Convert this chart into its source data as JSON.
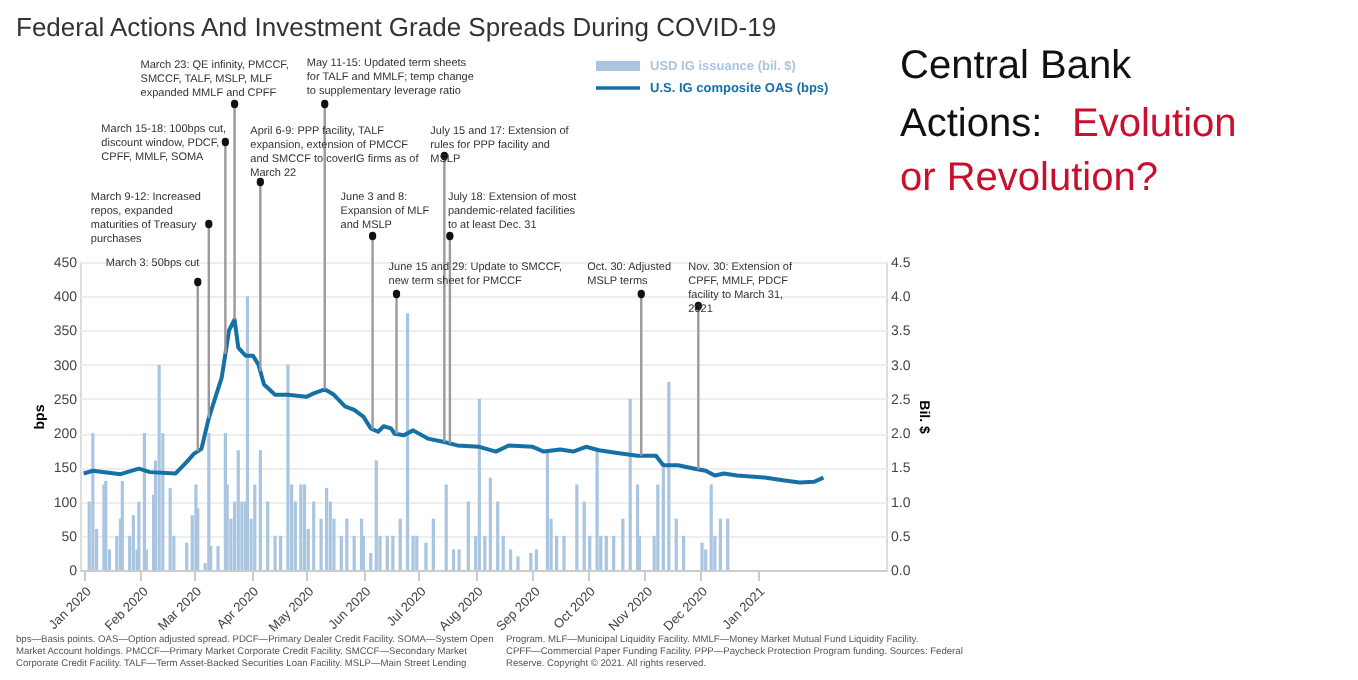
{
  "chart_data": {
    "type": "bar",
    "title": "Federal Actions And Investment Grade Spreads During COVID-19",
    "subtitle": "Central Bank Actions: Evolution or Revolution?",
    "ylabel": "bps",
    "y2label": "Bil. $",
    "xlim": [
      "2019-12-30",
      "2021-03-12"
    ],
    "xticks": [
      {
        "value": "2020-01-01",
        "label": "Jan 2020"
      },
      {
        "value": "2020-02-01",
        "label": "Feb 2020"
      },
      {
        "value": "2020-03-01",
        "label": "Mar 2020"
      },
      {
        "value": "2020-04-01",
        "label": "Apr 2020"
      },
      {
        "value": "2020-05-01",
        "label": "May 2020"
      },
      {
        "value": "2020-06-01",
        "label": "Jun 2020"
      },
      {
        "value": "2020-07-01",
        "label": "Jul 2020"
      },
      {
        "value": "2020-08-01",
        "label": "Aug 2020"
      },
      {
        "value": "2020-09-01",
        "label": "Sep 2020"
      },
      {
        "value": "2020-10-01",
        "label": "Oct 2020"
      },
      {
        "value": "2020-11-01",
        "label": "Nov 2020"
      },
      {
        "value": "2020-12-01",
        "label": "Dec 2020"
      },
      {
        "value": "2021-01-01",
        "label": "Jan 2021"
      }
    ],
    "ylim": [
      0,
      450
    ],
    "yticks": [
      0,
      50,
      100,
      150,
      200,
      250,
      300,
      350,
      400,
      450
    ],
    "y2lim": [
      0,
      4.5
    ],
    "y2ticks": [
      {
        "value": 0,
        "label": "0.0"
      },
      0.5,
      {
        "value": 1,
        "label": "1.0"
      },
      1.5,
      {
        "value": 2,
        "label": "2.0"
      },
      2.5,
      {
        "value": 3,
        "label": "3.0"
      },
      3.5,
      {
        "value": 4,
        "label": "4.0"
      },
      4.5
    ],
    "grid": "y",
    "legend": "top right",
    "series": [
      {
        "name": "USD IG issuance (bil. $)",
        "axis": "y2",
        "color": "#a9c5e0",
        "x": [
          "2020-01-04",
          "2020-01-06",
          "2020-01-08",
          "2020-01-12",
          "2020-01-13",
          "2020-01-15",
          "2020-01-19",
          "2020-01-21",
          "2020-01-22",
          "2020-01-26",
          "2020-01-28",
          "2020-01-30",
          "2020-01-31",
          "2020-02-03",
          "2020-02-04",
          "2020-02-08",
          "2020-02-09",
          "2020-02-11",
          "2020-02-13",
          "2020-02-17",
          "2020-02-19",
          "2020-02-26",
          "2020-02-29",
          "2020-03-02",
          "2020-03-03",
          "2020-03-07",
          "2020-03-09",
          "2020-03-10",
          "2020-03-14",
          "2020-03-18",
          "2020-03-19",
          "2020-03-21",
          "2020-03-23",
          "2020-03-25",
          "2020-03-27",
          "2020-03-29",
          "2020-03-30",
          "2020-04-01",
          "2020-04-03",
          "2020-04-06",
          "2020-04-10",
          "2020-04-14",
          "2020-04-17",
          "2020-04-21",
          "2020-04-23",
          "2020-04-25",
          "2020-04-28",
          "2020-04-30",
          "2020-05-02",
          "2020-05-05",
          "2020-05-09",
          "2020-05-12",
          "2020-05-14",
          "2020-05-16",
          "2020-05-20",
          "2020-05-23",
          "2020-05-27",
          "2020-05-31",
          "2020-06-01",
          "2020-06-05",
          "2020-06-08",
          "2020-06-10",
          "2020-06-14",
          "2020-06-17",
          "2020-06-21",
          "2020-06-25",
          "2020-06-28",
          "2020-06-30",
          "2020-07-05",
          "2020-07-09",
          "2020-07-16",
          "2020-07-20",
          "2020-07-23",
          "2020-07-28",
          "2020-08-01",
          "2020-08-03",
          "2020-08-06",
          "2020-08-09",
          "2020-08-13",
          "2020-08-16",
          "2020-08-20",
          "2020-08-24",
          "2020-08-31",
          "2020-09-03",
          "2020-09-09",
          "2020-09-11",
          "2020-09-14",
          "2020-09-18",
          "2020-09-25",
          "2020-09-29",
          "2020-10-02",
          "2020-10-06",
          "2020-10-08",
          "2020-10-11",
          "2020-10-15",
          "2020-10-20",
          "2020-10-24",
          "2020-10-28",
          "2020-10-29",
          "2020-11-06",
          "2020-11-08",
          "2020-11-11",
          "2020-11-14",
          "2020-11-18",
          "2020-11-22",
          "2020-12-02",
          "2020-12-04",
          "2020-12-07",
          "2020-12-09",
          "2020-12-12",
          "2020-12-16"
        ],
        "values": [
          1.0,
          2.0,
          0.6,
          1.25,
          1.3,
          0.3,
          0.5,
          0.75,
          1.3,
          0.5,
          0.8,
          0.3,
          1.0,
          2.0,
          0.3,
          1.1,
          1.6,
          3.0,
          2.0,
          1.2,
          0.5,
          0.4,
          0.8,
          1.25,
          0.9,
          0.1,
          2.0,
          0.35,
          0.35,
          2.0,
          1.25,
          0.75,
          1.0,
          1.75,
          1.0,
          1.0,
          4.0,
          0.75,
          1.25,
          1.75,
          1.0,
          0.5,
          0.5,
          3.0,
          1.25,
          1.0,
          1.25,
          1.25,
          0.6,
          1.0,
          0.75,
          1.2,
          1.0,
          0.75,
          0.5,
          0.75,
          0.5,
          0.75,
          0.5,
          0.25,
          1.6,
          0.5,
          0.5,
          0.5,
          0.75,
          3.75,
          0.5,
          0.5,
          0.4,
          0.75,
          1.25,
          0.3,
          0.3,
          1.0,
          0.5,
          2.5,
          0.5,
          1.35,
          1.0,
          0.5,
          0.3,
          0.2,
          0.25,
          0.3,
          1.75,
          0.75,
          0.5,
          0.5,
          1.25,
          1.0,
          0.5,
          1.75,
          0.5,
          0.5,
          0.5,
          0.75,
          2.5,
          1.25,
          0.5,
          0.5,
          1.25,
          1.5,
          2.75,
          0.75,
          0.5,
          0.4,
          0.3,
          1.25,
          0.5,
          0.75,
          0.75
        ]
      },
      {
        "name": "U.S. IG composite OAS (bps)",
        "type": "line",
        "color": "#1570a6",
        "x": [
          "2020-01-01",
          "2020-01-06",
          "2020-01-21",
          "2020-01-31",
          "2020-02-06",
          "2020-02-20",
          "2020-02-26",
          "2020-03-01",
          "2020-03-05",
          "2020-03-09",
          "2020-03-13",
          "2020-03-16",
          "2020-03-20",
          "2020-03-23",
          "2020-03-25",
          "2020-03-29",
          "2020-04-02",
          "2020-04-05",
          "2020-04-08",
          "2020-04-14",
          "2020-04-21",
          "2020-05-01",
          "2020-05-05",
          "2020-05-11",
          "2020-05-16",
          "2020-05-22",
          "2020-05-27",
          "2020-06-01",
          "2020-06-05",
          "2020-06-09",
          "2020-06-12",
          "2020-06-16",
          "2020-06-18",
          "2020-06-23",
          "2020-06-28",
          "2020-07-06",
          "2020-07-15",
          "2020-07-22",
          "2020-08-03",
          "2020-08-12",
          "2020-08-19",
          "2020-09-01",
          "2020-09-07",
          "2020-09-16",
          "2020-09-23",
          "2020-09-30",
          "2020-10-07",
          "2020-10-17",
          "2020-10-28",
          "2020-11-07",
          "2020-11-11",
          "2020-11-19",
          "2020-11-28",
          "2020-12-04",
          "2020-12-09",
          "2020-12-14",
          "2020-12-21",
          "2021-01-05",
          "2021-01-15",
          "2021-01-24",
          "2021-02-01",
          "2021-02-06"
        ],
        "values": [
          141,
          145,
          140,
          148,
          143,
          141,
          158,
          170,
          177,
          222,
          256,
          281,
          350,
          366,
          325,
          313,
          313,
          300,
          271,
          256,
          256,
          253,
          258,
          264,
          256,
          239,
          234,
          224,
          207,
          202,
          210,
          207,
          199,
          197,
          204,
          192,
          187,
          182,
          180,
          173,
          182,
          180,
          173,
          176,
          173,
          180,
          175,
          171,
          167,
          167,
          153,
          153,
          148,
          145,
          138,
          141,
          138,
          135,
          131,
          128,
          129,
          135
        ]
      }
    ],
    "annotations": [
      "bps—Basis points. OAS—Option adjusted spread. PDCF—Primary Dealer Credit Facility. SOMA—System Open Market Account holdings. PMCCF—Primary Market Corporate Credit Facility. SMCCF—Secondary Market Corporate Credit Facility. TALF—Term Asset-Backed Securities Loan Facility. MSLP—Main Street Lending",
      "Program. MLF—Municipal Liquidity Facility. MMLF—Money Market Mutual Fund Liquidity Facility. CPFF—Commercial Paper Funding Facility. PPP—Paycheck Protection Program funding. Sources: Federal Reserve. Copyright © 2021. All rights reserved."
    ],
    "ref_lines": [
      {
        "axis": "x",
        "value": "2020-03-03",
        "label": "March 3: 50bps cut",
        "color": "#9a9a9a"
      },
      {
        "axis": "x",
        "value": "2020-03-09",
        "label": "March 9-12: Increased repos, expanded maturities of Treasury purchases",
        "color": "#9a9a9a"
      },
      {
        "axis": "x",
        "value": "2020-03-18",
        "label": "March 15-18: 100bps cut, discount window, PDCF, CPFF, MMLF, SOMA",
        "color": "#9a9a9a"
      },
      {
        "axis": "x",
        "value": "2020-03-23",
        "label": "March 23: QE infinity, PMCCF, SMCCF, TALF, MSLP, MLF expanded MMLF and CPFF",
        "color": "#9a9a9a"
      },
      {
        "axis": "x",
        "value": "2020-04-06",
        "label": "April 6-9: PPP facility, TALF expansion, extension of PMCCF and SMCCF to coverIG firms as of March 22",
        "color": "#9a9a9a"
      },
      {
        "axis": "x",
        "value": "2020-05-11",
        "label": "May 11-15: Updated term sheets for TALF and MMLF; temp change to supplementary leverage ratio",
        "color": "#9a9a9a"
      },
      {
        "axis": "x",
        "value": "2020-06-06",
        "label": "June 3 and 8: Expansion of MLF and MSLP",
        "color": "#9a9a9a"
      },
      {
        "axis": "x",
        "value": "2020-06-19",
        "label": "June 15 and 29: Update to SMCCF, new term sheet for PMCCF",
        "color": "#9a9a9a"
      },
      {
        "axis": "x",
        "value": "2020-07-15",
        "label": "July 15 and 17: Extension of rules for PPP facility and MSLP",
        "color": "#9a9a9a"
      },
      {
        "axis": "x",
        "value": "2020-07-18",
        "label": "July 18: Extension of most pandemic-related facilities to at least Dec. 31",
        "color": "#9a9a9a"
      },
      {
        "axis": "x",
        "value": "2020-10-30",
        "label": "Oct. 30: Adjusted MSLP terms",
        "color": "#9a9a9a"
      },
      {
        "axis": "x",
        "value": "2020-11-30",
        "label": "Nov. 30: Extension of CPFF, MMLF, PDCF facility to March 31, 2021",
        "color": "#9a9a9a"
      }
    ]
  }
}
